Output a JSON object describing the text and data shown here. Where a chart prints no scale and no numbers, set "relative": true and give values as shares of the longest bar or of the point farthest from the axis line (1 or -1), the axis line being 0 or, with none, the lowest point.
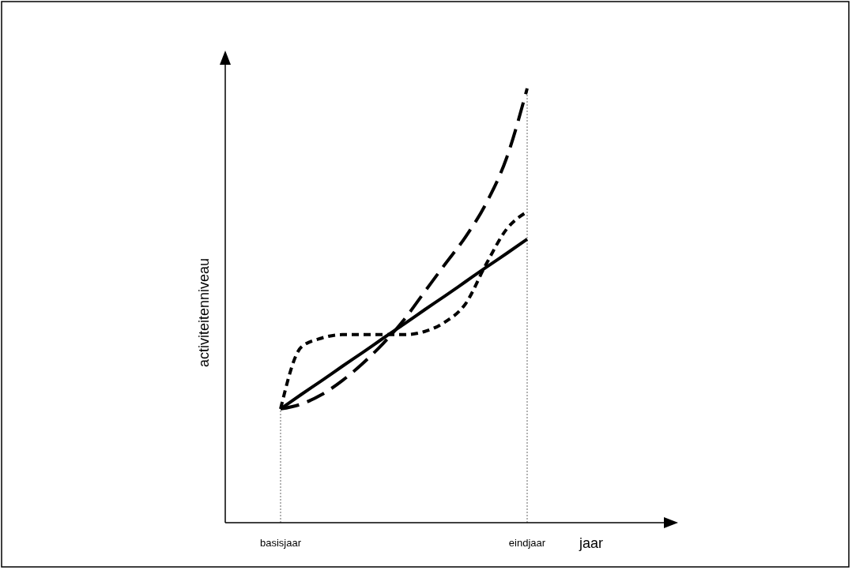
{
  "chart_data": {
    "type": "line",
    "xlabel": "jaar",
    "ylabel": "activiteitenniveau",
    "relative": true,
    "tick_labels": "x",
    "categories": [
      "basisjaar",
      null,
      null,
      null,
      null,
      null,
      null,
      null,
      null,
      null,
      null,
      null,
      "eindjaar"
    ],
    "series": [
      {
        "color": "#000000",
        "line_style": "solid",
        "values": [
          0.262,
          0.295,
          0.327,
          0.36,
          0.392,
          0.425,
          0.457,
          0.49,
          0.522,
          0.555,
          0.588,
          0.62,
          0.653
        ]
      },
      {
        "color": "#000000",
        "line_style": "dashed",
        "values": [
          0.262,
          0.273,
          0.295,
          0.327,
          0.367,
          0.413,
          0.467,
          0.531,
          0.595,
          0.658,
          0.735,
          0.84,
          1
        ]
      },
      {
        "color": "#000000",
        "line_style": "dotted",
        "values": [
          0.262,
          0.404,
          0.425,
          0.433,
          0.433,
          0.433,
          0.433,
          0.44,
          0.462,
          0.504,
          0.595,
          0.676,
          0.716
        ]
      }
    ],
    "ref_lines": [
      {
        "axis": "x",
        "value": "basisjaar",
        "color": "#808080",
        "line_style": "dotted"
      },
      {
        "axis": "x",
        "value": "eindjaar",
        "color": "#808080",
        "line_style": "dotted"
      }
    ]
  }
}
